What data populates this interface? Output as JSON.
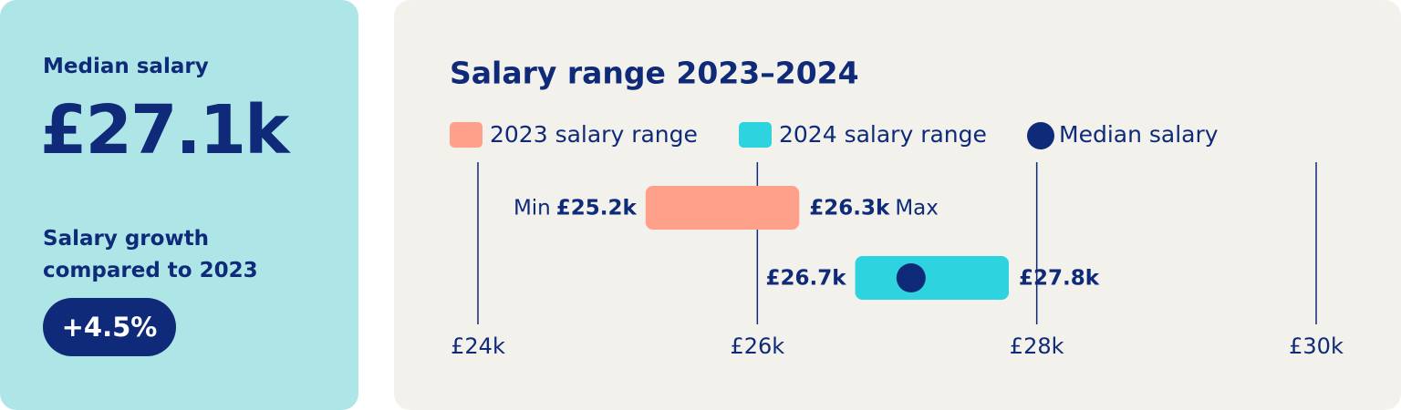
{
  "summary": {
    "median_label": "Median salary",
    "median_value": "£27.1k",
    "growth_label": "Salary growth compared to 2023",
    "growth_value": "+4.5%"
  },
  "chart_data": {
    "type": "range",
    "title": "Salary range 2023–2024",
    "series": [
      {
        "name": "2023 salary range",
        "color": "#ffa08a",
        "values": [
          25.2,
          26.3
        ],
        "value_labels": [
          "£25.2k",
          "£26.3k"
        ]
      },
      {
        "name": "2024 salary range",
        "color": "#2ed3e0",
        "values": [
          26.7,
          27.8
        ],
        "value_labels": [
          "£26.7k",
          "£27.8k"
        ]
      }
    ],
    "median": {
      "name": "Median salary",
      "color": "#0e2a78",
      "value": 27.1
    },
    "min_label": "Min",
    "max_label": "Max",
    "xlim": [
      24,
      30
    ],
    "xticks": [
      {
        "value": 24,
        "label": "£24k"
      },
      {
        "value": 26,
        "label": "£26k"
      },
      {
        "value": 28,
        "label": "£28k"
      },
      {
        "value": 30,
        "label": "£30k"
      }
    ],
    "grid": true
  }
}
